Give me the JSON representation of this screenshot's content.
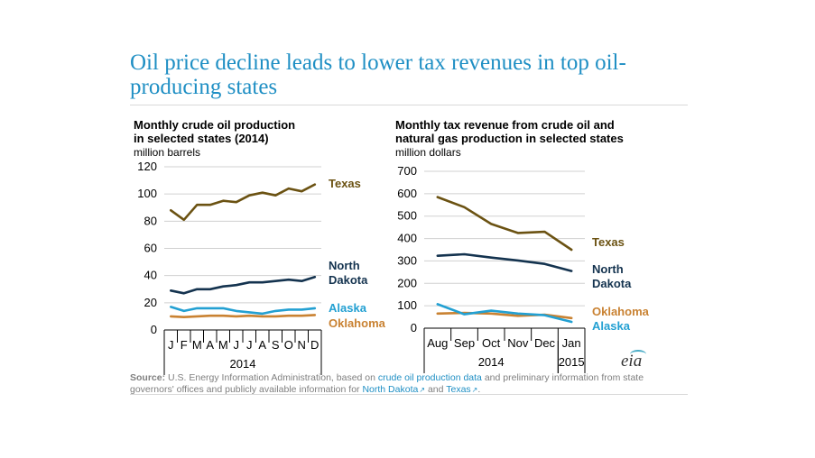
{
  "page": {
    "title": "Oil price decline leads to lower tax revenues in top oil-producing states",
    "source": {
      "label": "Source:",
      "text1": "U.S. Energy Information Administration, based on",
      "link1": "crude oil production data",
      "text2": "and preliminary information from state governors' offices and publicly available information for",
      "link2": "North Dakota",
      "text3": "and",
      "link3": "Texas",
      "text4": "."
    },
    "logo": "eia"
  },
  "chart_data": [
    {
      "type": "line",
      "title_lines": [
        "Monthly crude oil production",
        "in selected states (2014)"
      ],
      "ylabel": "million barrels",
      "categories": [
        "J",
        "F",
        "M",
        "A",
        "M",
        "J",
        "J",
        "A",
        "S",
        "O",
        "N",
        "D"
      ],
      "x_group_label": "2014",
      "yticks": [
        0,
        20,
        40,
        60,
        80,
        100,
        120
      ],
      "ylim": [
        0,
        120
      ],
      "grid": true,
      "legend": "inline-right",
      "series": [
        {
          "name": "Texas",
          "label_lines": [
            "Texas"
          ],
          "color": "#6b5212",
          "values": [
            88,
            81,
            92,
            92,
            95,
            94,
            99,
            101,
            99,
            104,
            102,
            107
          ]
        },
        {
          "name": "North Dakota",
          "label_lines": [
            "North",
            "Dakota"
          ],
          "color": "#14334f",
          "values": [
            29,
            27,
            30,
            30,
            32,
            33,
            35,
            35,
            36,
            37,
            36,
            39
          ]
        },
        {
          "name": "Alaska",
          "label_lines": [
            "Alaska"
          ],
          "color": "#23a0d2",
          "values": [
            17,
            14,
            16,
            16,
            16,
            14,
            13,
            12,
            14,
            15,
            15,
            16
          ]
        },
        {
          "name": "Oklahoma",
          "label_lines": [
            "Oklahoma"
          ],
          "color": "#c98232",
          "values": [
            10,
            9.5,
            10,
            10.5,
            10.5,
            10,
            10.5,
            10,
            10,
            10.5,
            10.5,
            11
          ]
        }
      ]
    },
    {
      "type": "line",
      "title_lines": [
        "Monthly tax revenue from crude oil and",
        "natural gas production in selected states"
      ],
      "ylabel": "million dollars",
      "categories": [
        "Aug",
        "Sep",
        "Oct",
        "Nov",
        "Dec",
        "Jan"
      ],
      "x_groups": [
        {
          "label": "2014",
          "span": [
            0,
            4
          ]
        },
        {
          "label": "2015",
          "span": [
            5,
            5
          ]
        }
      ],
      "yticks": [
        0,
        100,
        200,
        300,
        400,
        500,
        600,
        700
      ],
      "ylim": [
        0,
        700
      ],
      "grid": true,
      "legend": "inline-right",
      "series": [
        {
          "name": "Texas",
          "label_lines": [
            "Texas"
          ],
          "color": "#6b5212",
          "values": [
            585,
            540,
            465,
            425,
            430,
            350
          ]
        },
        {
          "name": "North Dakota",
          "label_lines": [
            "North",
            "Dakota"
          ],
          "color": "#14334f",
          "values": [
            323,
            330,
            315,
            302,
            287,
            255
          ]
        },
        {
          "name": "Oklahoma",
          "label_lines": [
            "Oklahoma"
          ],
          "color": "#c98232",
          "values": [
            65,
            68,
            65,
            55,
            60,
            45
          ]
        },
        {
          "name": "Alaska",
          "label_lines": [
            "Alaska"
          ],
          "color": "#23a0d2",
          "values": [
            107,
            62,
            78,
            65,
            58,
            28
          ]
        }
      ]
    }
  ]
}
